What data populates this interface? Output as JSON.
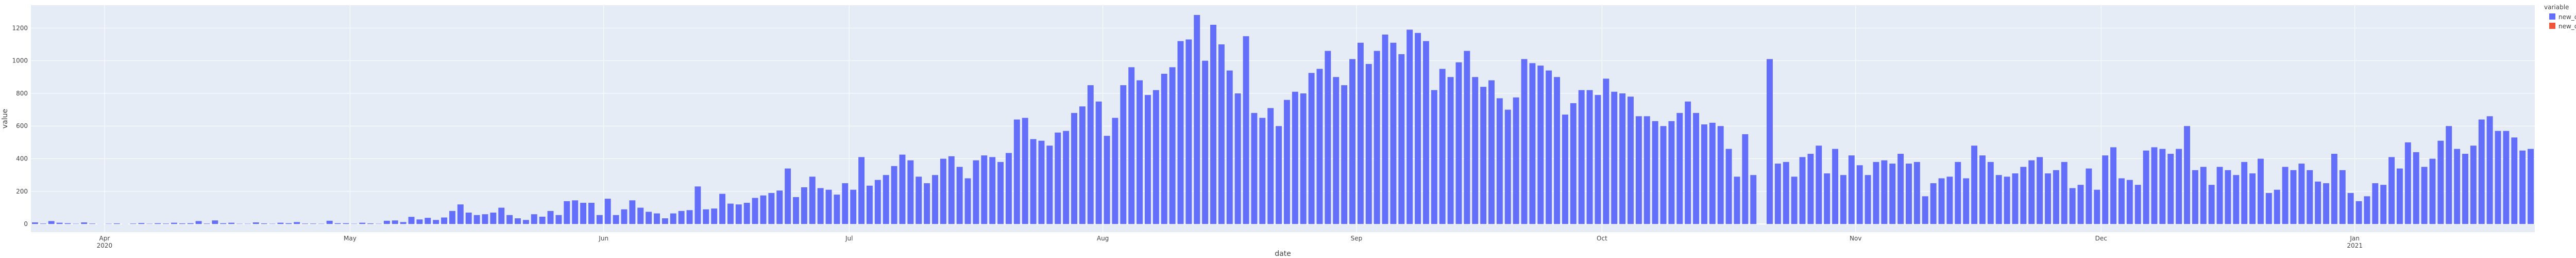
{
  "chart_data": {
    "type": "bar",
    "xlabel": "date",
    "ylabel": "value",
    "ylim": [
      -50,
      1340
    ],
    "yticks": [
      0,
      200,
      400,
      600,
      800,
      1000,
      1200
    ],
    "grid": true,
    "legend_position": "top-right",
    "legend_title": "variable",
    "x_start_date": "2020-03-23",
    "x_tick_labels": [
      {
        "date": "2020-04-01",
        "line1": "Apr",
        "line2": "2020"
      },
      {
        "date": "2020-05-01",
        "line1": "May",
        "line2": ""
      },
      {
        "date": "2020-06-01",
        "line1": "Jun",
        "line2": ""
      },
      {
        "date": "2020-07-01",
        "line1": "Jul",
        "line2": ""
      },
      {
        "date": "2020-08-01",
        "line1": "Aug",
        "line2": ""
      },
      {
        "date": "2020-09-01",
        "line1": "Sep",
        "line2": ""
      },
      {
        "date": "2020-10-01",
        "line1": "Oct",
        "line2": ""
      },
      {
        "date": "2020-11-01",
        "line1": "Nov",
        "line2": ""
      },
      {
        "date": "2020-12-01",
        "line1": "Dec",
        "line2": ""
      },
      {
        "date": "2021-01-01",
        "line1": "Jan",
        "line2": "2021"
      }
    ],
    "series": [
      {
        "name": "new_cases",
        "color": "#636efa",
        "values": [
          10,
          3,
          18,
          8,
          5,
          2,
          10,
          3,
          1,
          2,
          4,
          1,
          3,
          6,
          2,
          5,
          3,
          8,
          4,
          5,
          18,
          3,
          22,
          5,
          8,
          2,
          2,
          10,
          4,
          2,
          8,
          5,
          12,
          3,
          3,
          2,
          20,
          5,
          5,
          2,
          8,
          4,
          2,
          20,
          22,
          12,
          44,
          28,
          38,
          25,
          40,
          80,
          120,
          70,
          55,
          60,
          70,
          100,
          55,
          35,
          25,
          60,
          45,
          80,
          55,
          140,
          145,
          130,
          130,
          55,
          155,
          55,
          90,
          145,
          100,
          75,
          65,
          35,
          65,
          80,
          85,
          230,
          90,
          95,
          185,
          125,
          120,
          130,
          160,
          175,
          190,
          205,
          340,
          165,
          225,
          290,
          220,
          210,
          180,
          250,
          210,
          410,
          235,
          270,
          300,
          355,
          425,
          390,
          290,
          250,
          300,
          400,
          415,
          350,
          280,
          390,
          420,
          410,
          380,
          435,
          640,
          650,
          520,
          510,
          480,
          560,
          570,
          680,
          720,
          850,
          750,
          540,
          650,
          850,
          960,
          880,
          790,
          820,
          920,
          960,
          1120,
          1130,
          1280,
          1000,
          1220,
          1100,
          940,
          800,
          1150,
          680,
          650,
          710,
          600,
          760,
          810,
          800,
          925,
          950,
          1060,
          900,
          850,
          1010,
          1110,
          980,
          1060,
          1160,
          1110,
          1040,
          1190,
          1170,
          1120,
          820,
          950,
          900,
          990,
          1060,
          900,
          840,
          880,
          770,
          700,
          775,
          1010,
          985,
          970,
          940,
          900,
          670,
          740,
          820,
          820,
          790,
          890,
          810,
          800,
          780,
          660,
          660,
          630,
          600,
          630,
          680,
          750,
          680,
          610,
          620,
          600,
          460,
          290,
          550,
          300,
          0,
          1010,
          370,
          380,
          290,
          410,
          430,
          480,
          310,
          460,
          300,
          420,
          360,
          300,
          380,
          390,
          370,
          430,
          370,
          380,
          170,
          250,
          280,
          290,
          380,
          280,
          480,
          420,
          380,
          300,
          290,
          310,
          350,
          390,
          410,
          310,
          330,
          380,
          220,
          240,
          340,
          210,
          420,
          470,
          280,
          270,
          240,
          450,
          470,
          460,
          430,
          460,
          600,
          330,
          350,
          240,
          350,
          330,
          300,
          380,
          310,
          400,
          190,
          210,
          350,
          330,
          370,
          330,
          260,
          250,
          430,
          330,
          190,
          140,
          170,
          250,
          240,
          410,
          340,
          500,
          440,
          350,
          400,
          510,
          600,
          460,
          430,
          480,
          640,
          660,
          570,
          570,
          530,
          450,
          460
        ]
      },
      {
        "name": "new_deaths",
        "color": "#ef553b",
        "values": [
          0,
          0,
          0,
          0,
          0,
          0,
          0,
          0,
          0,
          0,
          0,
          0,
          0,
          0,
          0,
          0,
          0,
          0,
          0,
          0,
          0,
          0,
          0,
          0,
          0,
          0,
          0,
          0,
          0,
          0,
          0,
          0,
          0,
          0,
          0,
          0,
          0,
          0,
          0,
          0,
          0,
          0,
          0,
          0,
          0,
          0,
          0,
          0,
          0,
          0,
          0,
          0,
          0,
          0,
          0,
          0,
          0,
          0,
          0,
          0,
          0,
          0,
          0,
          0,
          0,
          0,
          0,
          0,
          0,
          0,
          0,
          0,
          0,
          0,
          0,
          0,
          0,
          0,
          0,
          0,
          0,
          0,
          0,
          0,
          0,
          0,
          0,
          0,
          0,
          0,
          0,
          0,
          0,
          0,
          0,
          0,
          0,
          0,
          0,
          0,
          0,
          0,
          0,
          0,
          0,
          0,
          0,
          0,
          0,
          0,
          0,
          0,
          0,
          0,
          0,
          0,
          0,
          0,
          0,
          0,
          0,
          0,
          0,
          0,
          0,
          0,
          0,
          0,
          0,
          0,
          0,
          0,
          0,
          0,
          0,
          0,
          0,
          0,
          0,
          0,
          0,
          0,
          0,
          0,
          0,
          0,
          0,
          0,
          0,
          0,
          0,
          0,
          0,
          0,
          0,
          0,
          0,
          0,
          0,
          0,
          0,
          0,
          0,
          0,
          0,
          0,
          0,
          0,
          0,
          0,
          0,
          0,
          0,
          0,
          0,
          0,
          0,
          0,
          0,
          0,
          0,
          0,
          0,
          0,
          0,
          0,
          0,
          0,
          0,
          0,
          0,
          0,
          0,
          0,
          0,
          0,
          0,
          0,
          0,
          0,
          0,
          0,
          0,
          0,
          0,
          0,
          0,
          0,
          0,
          0,
          0,
          0,
          0,
          0,
          0,
          0,
          0,
          0,
          0,
          0,
          0,
          0,
          0,
          0,
          0,
          0,
          0,
          0,
          0,
          0,
          0,
          0,
          0,
          0,
          0,
          0,
          0,
          0,
          0,
          0,
          0,
          0,
          0,
          0,
          0,
          0,
          0,
          0,
          0,
          0,
          0,
          0,
          0,
          0,
          0,
          0,
          0,
          0,
          0,
          0,
          0,
          0,
          0,
          0,
          0,
          0,
          0,
          0,
          0,
          0,
          0,
          0,
          0,
          0,
          0,
          0,
          0,
          0,
          0,
          0,
          0,
          0,
          0,
          0,
          0,
          0,
          0,
          0,
          0,
          0,
          0,
          0,
          0,
          0,
          0,
          0,
          0,
          0,
          0,
          0,
          0,
          0,
          0,
          0,
          0,
          0,
          0,
          0,
          0,
          0,
          0,
          0,
          0,
          0,
          0,
          0,
          0,
          0,
          0
        ]
      }
    ]
  },
  "colors": {
    "plot_background": "#e5ecf6",
    "grid": "#ffffff",
    "text": "#444444"
  }
}
